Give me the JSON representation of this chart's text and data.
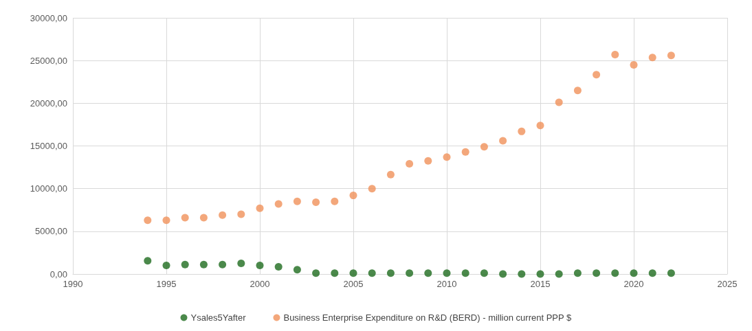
{
  "chart_data": {
    "type": "scatter",
    "x": [
      1994,
      1995,
      1996,
      1997,
      1998,
      1999,
      2000,
      2001,
      2002,
      2003,
      2004,
      2005,
      2006,
      2007,
      2008,
      2009,
      2010,
      2011,
      2012,
      2013,
      2014,
      2015,
      2016,
      2017,
      2018,
      2019,
      2020,
      2021,
      2022
    ],
    "series": [
      {
        "name": "Ysales5Yafter",
        "color": "#1e6b1e",
        "values": [
          1550,
          1000,
          1100,
          1100,
          1100,
          1250,
          1000,
          850,
          500,
          100,
          100,
          100,
          100,
          100,
          100,
          100,
          100,
          100,
          100,
          0,
          0,
          0,
          0,
          100,
          100,
          100,
          100,
          100,
          100
        ]
      },
      {
        "name": "Business Enterprise Expenditure on R&D (BERD) - million current PPP $",
        "color": "#f0915a",
        "values": [
          6300,
          6300,
          6600,
          6600,
          6900,
          7000,
          7700,
          8200,
          8500,
          8400,
          8500,
          9200,
          10000,
          11650,
          12900,
          13250,
          13700,
          14300,
          14900,
          15600,
          16700,
          17400,
          20100,
          21500,
          23350,
          25700,
          24500,
          25350,
          25600
        ]
      }
    ],
    "xlim": [
      1990,
      2025
    ],
    "xticks": [
      1990,
      1995,
      2000,
      2005,
      2010,
      2015,
      2020,
      2025
    ],
    "ylim": [
      0,
      30000
    ],
    "yticks": [
      {
        "value": 0,
        "label": "0,00"
      },
      {
        "value": 5000,
        "label": "5000,00"
      },
      {
        "value": 10000,
        "label": "10000,00"
      },
      {
        "value": 15000,
        "label": "15000,00"
      },
      {
        "value": 20000,
        "label": "20000,00"
      },
      {
        "value": 25000,
        "label": "25000,00"
      },
      {
        "value": 30000,
        "label": "30000,00"
      }
    ],
    "grid": true,
    "legend": "bottom",
    "marker": "circle"
  }
}
